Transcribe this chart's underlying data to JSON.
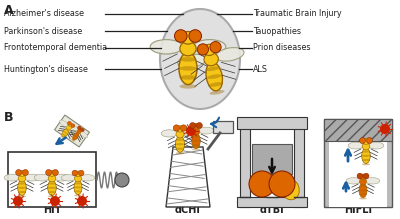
{
  "panel_A_label": "A",
  "panel_B_label": "B",
  "left_labels": [
    "Alzheimer's disease",
    "Parkinson's disease",
    "Frontotemporal dementia",
    "Huntington's disease"
  ],
  "right_labels": [
    "Traumatic Brain Injury",
    "Tauopathies",
    "Prion diseases",
    "ALS"
  ],
  "hit_label": "HIT",
  "dchi_label": "dCHI",
  "dtbi_label": "dTBI",
  "hifli_label": "HIFLI",
  "bg_color": "#ffffff",
  "line_color": "#222222",
  "text_color": "#222222",
  "fly_body_color": "#f5c518",
  "fly_eye_color": "#dd6600",
  "fly_abdomen_stripe": "#cc8800",
  "ellipse_fill": "#d8d8d8",
  "ellipse_edge": "#999999",
  "red_star": "#cc2200",
  "blue_arrow": "#1a5fa0",
  "spring_gray": "#888888",
  "mummy_gray": "#aaaaaa",
  "press_light": "#cccccc",
  "press_dark": "#555555",
  "hatch_gray": "#888888",
  "hammer_gray": "#dddddd"
}
